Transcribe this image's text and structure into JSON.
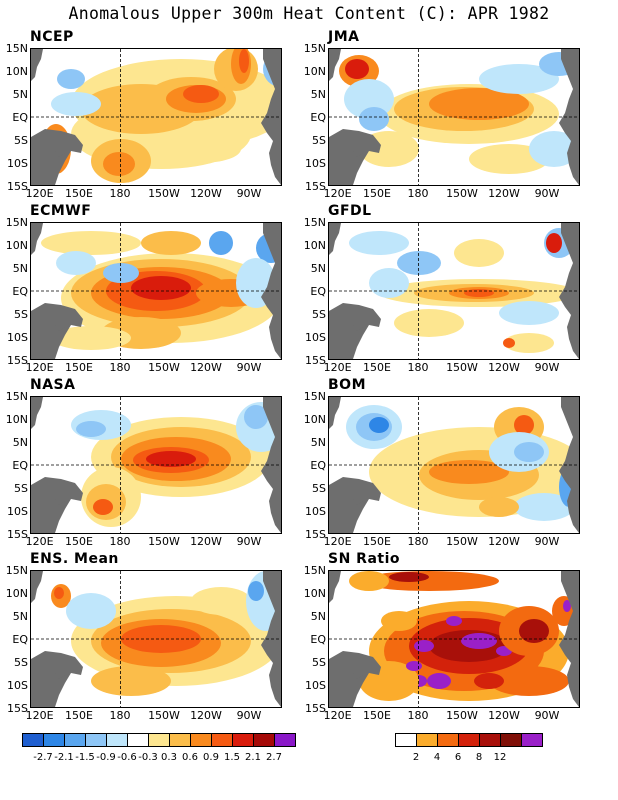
{
  "title": "Anomalous Upper 300m Heat Content (C): APR 1982",
  "lat_labels": [
    "15N",
    "10N",
    "5N",
    "EQ",
    "5S",
    "10S",
    "15S"
  ],
  "lon_labels": [
    "120E",
    "150E",
    "180",
    "150W",
    "120W",
    "90W"
  ],
  "panels": [
    {
      "name": "NCEP"
    },
    {
      "name": "JMA"
    },
    {
      "name": "ECMWF"
    },
    {
      "name": "GFDL"
    },
    {
      "name": "NASA"
    },
    {
      "name": "BOM"
    },
    {
      "name": "ENS. Mean"
    },
    {
      "name": "SN Ratio"
    }
  ],
  "colorbar_anomaly": {
    "colors": [
      "#1f5fd0",
      "#2e86e6",
      "#5aa6ef",
      "#8ec6f6",
      "#bfe6fb",
      "#ffffff",
      "#fde690",
      "#fbbd4a",
      "#f98a1e",
      "#f55a12",
      "#d91c0c",
      "#a50a08",
      "#8a18c8"
    ],
    "labels": [
      "-2.7",
      "-2.1",
      "-1.5",
      "-0.9",
      "-0.6",
      "-0.3",
      "0.3",
      "0.6",
      "0.9",
      "1.5",
      "2.1",
      "2.7"
    ]
  },
  "colorbar_sn": {
    "colors": [
      "#ffffff",
      "#fbac2c",
      "#f36a10",
      "#d3220b",
      "#a8100a",
      "#801008",
      "#9a20c8"
    ],
    "labels": [
      "2",
      "4",
      "6",
      "8",
      "12"
    ]
  },
  "colors": {
    "land": "#6e6e6e",
    "border": "#000000"
  }
}
